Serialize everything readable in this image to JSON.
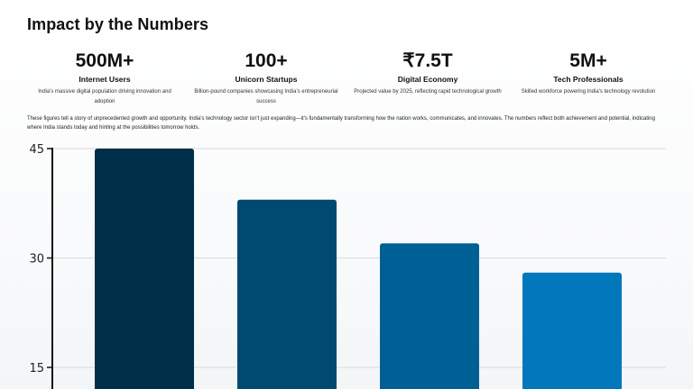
{
  "page": {
    "title": "Impact by the Numbers"
  },
  "stats": [
    {
      "value": "500M+",
      "label": "Internet Users",
      "description": "India's massive digital population driving innovation and adoption"
    },
    {
      "value": "100+",
      "label": "Unicorn Startups",
      "description": "Billion-pound companies showcasing India's entrepreneurial success"
    },
    {
      "value": "₹7.5T",
      "label": "Digital Economy",
      "description": "Projected value by 2025, reflecting rapid technological growth"
    },
    {
      "value": "5M+",
      "label": "Tech Professionals",
      "description": "Skilled workforce powering India's technology revolution"
    }
  ],
  "summary": "These figures tell a story of unprecedented growth and opportunity. India's technology sector isn't just expanding—it's fundamentally transforming how the nation works, communicates, and innovates. The numbers reflect both achievement and potential, indicating where India stands today and hinting at the possibilities tomorrow holds.",
  "chart_data": {
    "type": "bar",
    "title": "",
    "xlabel": "",
    "ylabel": "",
    "categories": [
      "",
      "",
      "",
      ""
    ],
    "values": [
      45,
      38,
      32,
      28
    ],
    "ylim": [
      12.8,
      45
    ],
    "yticks": [
      15,
      30,
      45
    ],
    "grid": true,
    "legend": "none",
    "colors": [
      "#002f4a",
      "#004a72",
      "#005f94",
      "#0277bb"
    ],
    "grid_color": "#d7d9dc",
    "axis_color": "#111111"
  }
}
